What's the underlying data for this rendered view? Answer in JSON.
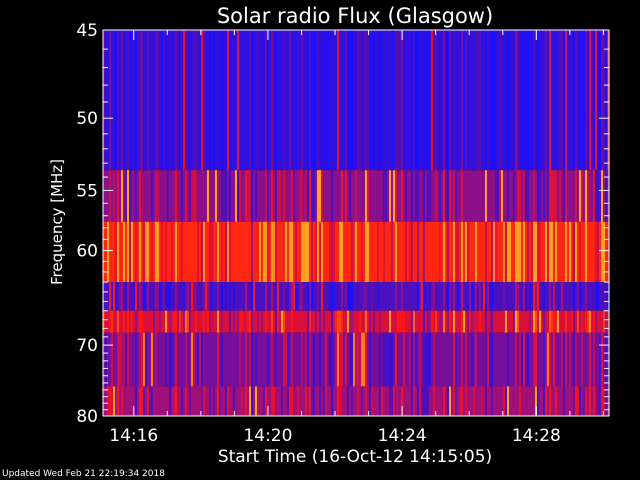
{
  "chart_data": {
    "type": "heatmap",
    "title": "Solar radio Flux (Glasgow)",
    "xlabel": "Start Time (16-Oct-12 14:15:05)",
    "ylabel": "Frequency [MHz]",
    "x_ticks": [
      "14:16",
      "14:20",
      "14:24",
      "14:28"
    ],
    "y_ticks": [
      "45",
      "50",
      "55",
      "60",
      "70",
      "80"
    ],
    "y_scale": "reciprocal",
    "x_range": [
      "14:15:05",
      "14:30:10"
    ],
    "y_range": [
      45,
      80
    ],
    "colormap": [
      "#1a10ff",
      "#3a10d0",
      "#5b0fb0",
      "#a0107a",
      "#e01035",
      "#ff1a10",
      "#ffa020"
    ],
    "bands": [
      {
        "from": 45,
        "to": 53.5,
        "level": 0.12
      },
      {
        "from": 53.5,
        "to": 57.5,
        "level": 0.45
      },
      {
        "from": 57.5,
        "to": 63.0,
        "level": 0.85
      },
      {
        "from": 63.0,
        "to": 66.0,
        "level": 0.25
      },
      {
        "from": 66.0,
        "to": 68.5,
        "level": 0.65
      },
      {
        "from": 68.5,
        "to": 75.5,
        "level": 0.4
      },
      {
        "from": 75.5,
        "to": 80.0,
        "level": 0.5
      }
    ]
  },
  "footer": {
    "updated": "Updated Wed Feb 21 22:19:34 2018"
  }
}
